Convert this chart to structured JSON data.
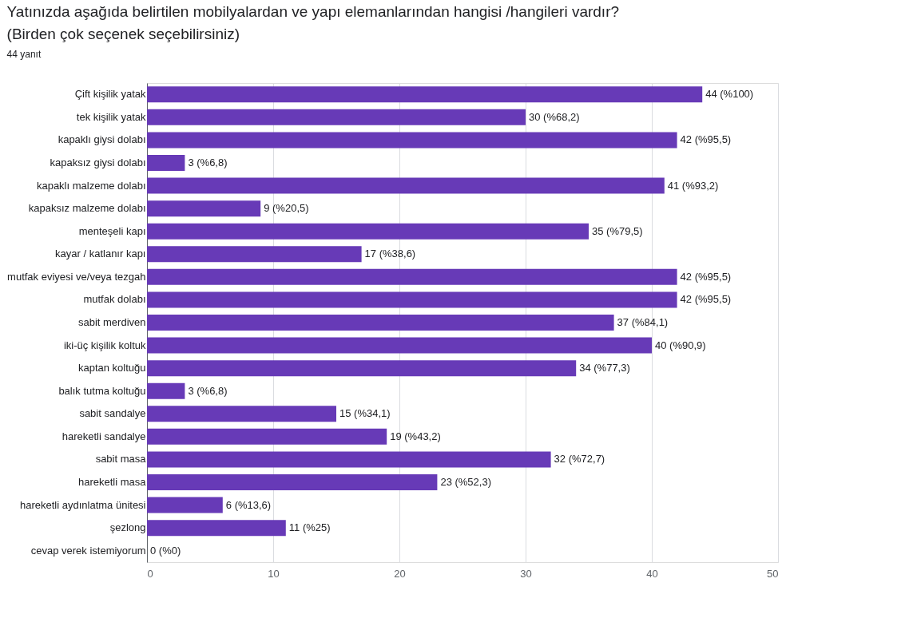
{
  "chart_data": {
    "type": "bar",
    "orientation": "horizontal",
    "title": "Yatınızda aşağıda belirtilen mobilyalardan ve yapı elemanlarından hangisi /hangileri vardır? (Birden çok seçenek seçebilirsiniz)",
    "subtitle": "44 yanıt",
    "categories": [
      "Çift kişilik yatak",
      "tek kişilik yatak",
      "kapaklı giysi dolabı",
      "kapaksız giysi dolabı",
      "kapaklı malzeme dolabı",
      "kapaksız malzeme dolabı",
      "menteşeli kapı",
      "kayar / katlanır kapı",
      "mutfak eviyesi ve/veya tezgah",
      "mutfak dolabı",
      "sabit merdiven",
      "iki-üç kişilik koltuk",
      "kaptan koltuğu",
      "balık tutma koltuğu",
      "sabit sandalye",
      "hareketli sandalye",
      "sabit masa",
      "hareketli masa",
      "hareketli aydınlatma ünitesi",
      "şezlong",
      "cevap verek istemiyorum"
    ],
    "values": [
      44,
      30,
      42,
      3,
      41,
      9,
      35,
      17,
      42,
      42,
      37,
      40,
      34,
      3,
      15,
      19,
      32,
      23,
      6,
      11,
      0
    ],
    "value_labels": [
      "44 (%100)",
      "30 (%68,2)",
      "42 (%95,5)",
      "3 (%6,8)",
      "41 (%93,2)",
      "9 (%20,5)",
      "35 (%79,5)",
      "17 (%38,6)",
      "42 (%95,5)",
      "42 (%95,5)",
      "37 (%84,1)",
      "40 (%90,9)",
      "34 (%77,3)",
      "3 (%6,8)",
      "15 (%34,1)",
      "19 (%43,2)",
      "32 (%72,7)",
      "23 (%52,3)",
      "6 (%13,6)",
      "11 (%25)",
      "0 (%0)"
    ],
    "color": "#673ab7",
    "xlim": [
      0,
      50
    ],
    "xticks": [
      0,
      10,
      20,
      30,
      40,
      50
    ],
    "grid": "x"
  }
}
